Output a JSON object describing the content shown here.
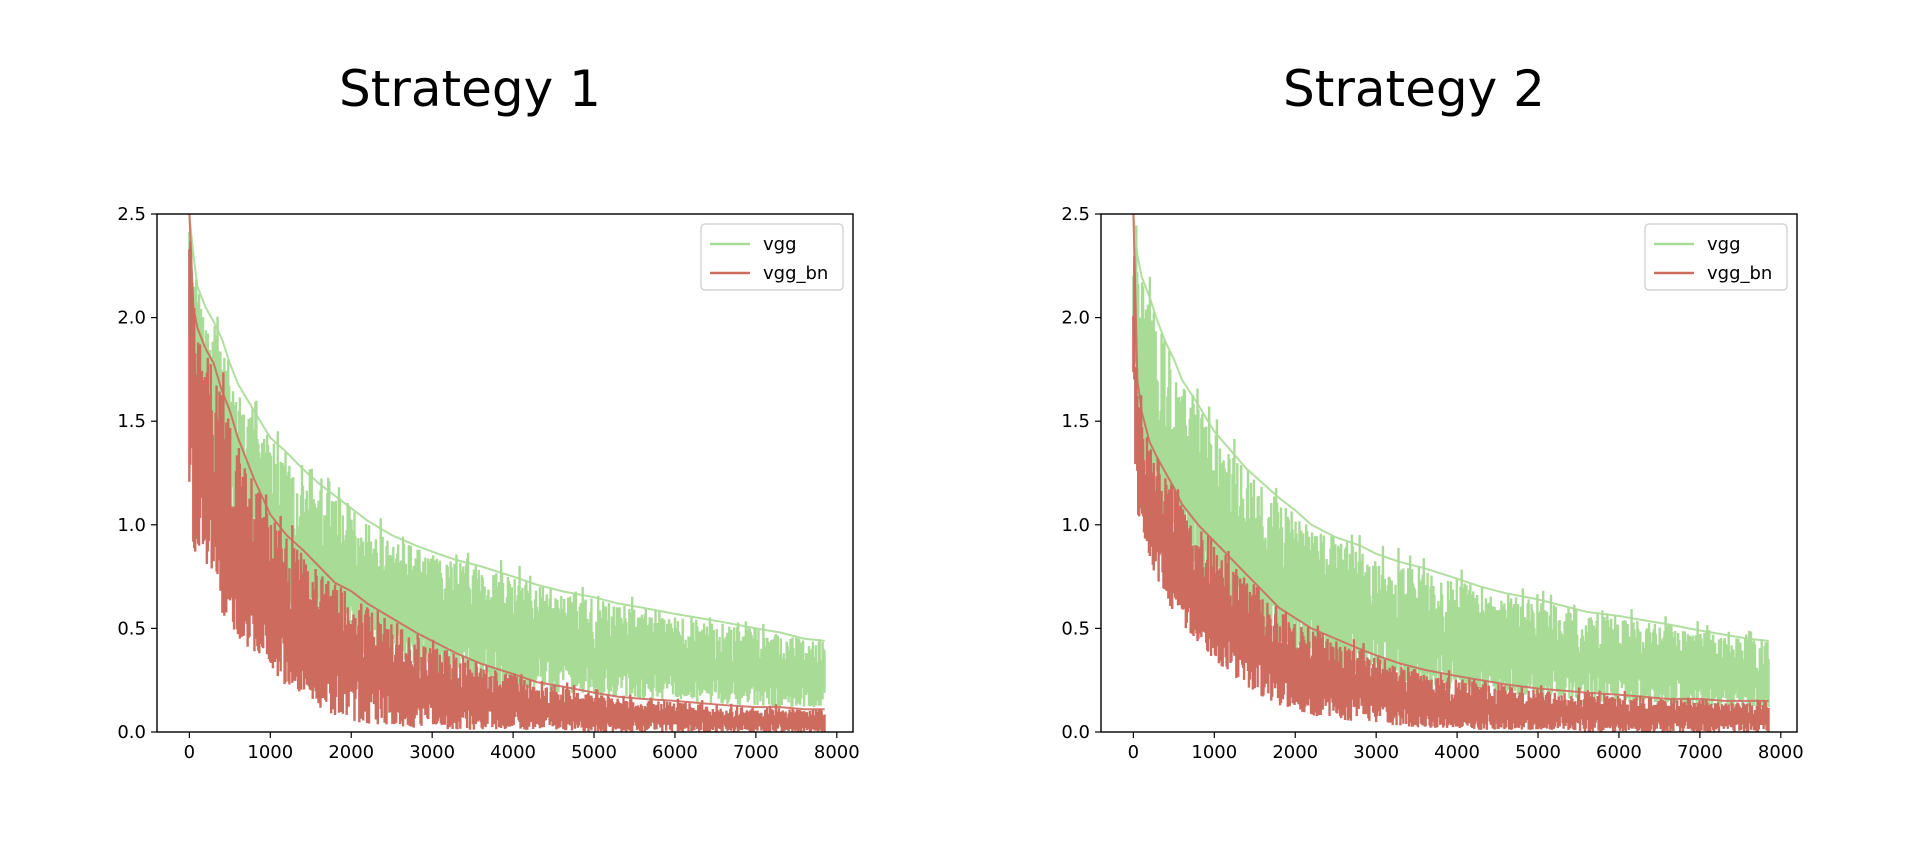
{
  "chart_data": [
    {
      "type": "line",
      "title": "Strategy 1",
      "xlabel": "",
      "ylabel": "",
      "xlim": [
        -400,
        8200
      ],
      "ylim": [
        0,
        2.5
      ],
      "xticks": [
        0,
        1000,
        2000,
        3000,
        4000,
        5000,
        6000,
        7000,
        8000
      ],
      "xtick_labels": [
        "0",
        "1000",
        "2000",
        "3000",
        "4000",
        "5000",
        "6000",
        "7000",
        "8000"
      ],
      "yticks": [
        0.0,
        0.5,
        1.0,
        1.5,
        2.0,
        2.5
      ],
      "ytick_labels": [
        "0.0",
        "0.5",
        "1.0",
        "1.5",
        "2.0",
        "2.5"
      ],
      "grid": false,
      "legend_position": "top-right",
      "series": [
        {
          "name": "vgg",
          "color": "#a8dc96",
          "x": [
            0,
            50,
            100,
            200,
            300,
            400,
            500,
            600,
            800,
            1000,
            1200,
            1400,
            1600,
            1800,
            2000,
            2200,
            2500,
            2800,
            3000,
            3300,
            3600,
            4000,
            4300,
            4600,
            5000,
            5300,
            5600,
            6000,
            6300,
            6600,
            7000,
            7300,
            7600,
            7850
          ],
          "upper": [
            2.5,
            2.3,
            2.15,
            2.05,
            1.98,
            1.9,
            1.78,
            1.68,
            1.55,
            1.42,
            1.35,
            1.27,
            1.2,
            1.14,
            1.08,
            1.02,
            0.95,
            0.9,
            0.87,
            0.83,
            0.8,
            0.75,
            0.71,
            0.68,
            0.65,
            0.62,
            0.6,
            0.57,
            0.55,
            0.53,
            0.5,
            0.48,
            0.45,
            0.44
          ],
          "lower": [
            1.85,
            1.6,
            1.45,
            1.3,
            1.15,
            1.05,
            0.95,
            0.9,
            0.8,
            0.7,
            0.62,
            0.55,
            0.5,
            0.44,
            0.4,
            0.36,
            0.32,
            0.3,
            0.28,
            0.25,
            0.23,
            0.21,
            0.2,
            0.19,
            0.18,
            0.17,
            0.16,
            0.15,
            0.14,
            0.13,
            0.13,
            0.12,
            0.12,
            0.12
          ]
        },
        {
          "name": "vgg_bn",
          "color": "#cd6b5f",
          "x": [
            0,
            50,
            100,
            200,
            300,
            400,
            500,
            600,
            800,
            1000,
            1200,
            1400,
            1600,
            1800,
            2000,
            2200,
            2500,
            2800,
            3000,
            3300,
            3600,
            4000,
            4300,
            4600,
            5000,
            5300,
            5600,
            6000,
            6300,
            6600,
            7000,
            7300,
            7600,
            7850
          ],
          "upper": [
            2.5,
            2.05,
            1.95,
            1.85,
            1.78,
            1.65,
            1.55,
            1.42,
            1.22,
            1.05,
            0.95,
            0.88,
            0.8,
            0.72,
            0.68,
            0.62,
            0.55,
            0.48,
            0.44,
            0.38,
            0.33,
            0.28,
            0.24,
            0.22,
            0.19,
            0.17,
            0.16,
            0.15,
            0.14,
            0.13,
            0.12,
            0.12,
            0.11,
            0.11
          ],
          "lower": [
            1.2,
            0.9,
            0.8,
            0.72,
            0.65,
            0.58,
            0.52,
            0.45,
            0.38,
            0.3,
            0.22,
            0.18,
            0.12,
            0.08,
            0.05,
            0.04,
            0.03,
            0.02,
            0.02,
            0.01,
            0.01,
            0.01,
            0.01,
            0.01,
            0.0,
            0.0,
            0.0,
            0.0,
            0.0,
            0.0,
            0.0,
            0.0,
            0.0,
            0.0
          ]
        }
      ]
    },
    {
      "type": "line",
      "title": "Strategy 2",
      "xlabel": "",
      "ylabel": "",
      "xlim": [
        -400,
        8200
      ],
      "ylim": [
        0,
        2.5
      ],
      "xticks": [
        0,
        1000,
        2000,
        3000,
        4000,
        5000,
        6000,
        7000,
        8000
      ],
      "xtick_labels": [
        "0",
        "1000",
        "2000",
        "3000",
        "4000",
        "5000",
        "6000",
        "7000",
        "8000"
      ],
      "yticks": [
        0.0,
        0.5,
        1.0,
        1.5,
        2.0,
        2.5
      ],
      "ytick_labels": [
        "0.0",
        "0.5",
        "1.0",
        "1.5",
        "2.0",
        "2.5"
      ],
      "grid": false,
      "legend_position": "top-right",
      "series": [
        {
          "name": "vgg",
          "color": "#a8dc96",
          "x": [
            0,
            50,
            100,
            200,
            300,
            400,
            500,
            600,
            800,
            1000,
            1200,
            1400,
            1600,
            1800,
            2000,
            2200,
            2500,
            2800,
            3000,
            3300,
            3600,
            4000,
            4300,
            4600,
            5000,
            5300,
            5600,
            6000,
            6300,
            6600,
            7000,
            7300,
            7600,
            7850
          ],
          "upper": [
            2.5,
            2.3,
            2.2,
            2.1,
            1.98,
            1.88,
            1.8,
            1.7,
            1.58,
            1.45,
            1.36,
            1.27,
            1.2,
            1.13,
            1.07,
            1.0,
            0.94,
            0.9,
            0.86,
            0.82,
            0.79,
            0.74,
            0.7,
            0.67,
            0.64,
            0.61,
            0.58,
            0.56,
            0.54,
            0.52,
            0.49,
            0.47,
            0.45,
            0.44
          ],
          "lower": [
            1.9,
            1.45,
            1.3,
            1.15,
            1.05,
            0.95,
            0.88,
            0.82,
            0.72,
            0.63,
            0.56,
            0.5,
            0.45,
            0.41,
            0.38,
            0.34,
            0.3,
            0.28,
            0.26,
            0.24,
            0.22,
            0.2,
            0.19,
            0.18,
            0.17,
            0.16,
            0.15,
            0.14,
            0.14,
            0.13,
            0.13,
            0.12,
            0.12,
            0.12
          ]
        },
        {
          "name": "vgg_bn",
          "color": "#cd6b5f",
          "x": [
            0,
            50,
            100,
            200,
            300,
            400,
            500,
            600,
            800,
            1000,
            1200,
            1400,
            1600,
            1800,
            2000,
            2200,
            2500,
            2800,
            3000,
            3300,
            3600,
            4000,
            4300,
            4600,
            5000,
            5300,
            5600,
            6000,
            6300,
            6600,
            7000,
            7300,
            7600,
            7850
          ],
          "upper": [
            2.5,
            1.7,
            1.55,
            1.4,
            1.32,
            1.25,
            1.18,
            1.1,
            1.0,
            0.92,
            0.84,
            0.76,
            0.68,
            0.6,
            0.55,
            0.5,
            0.45,
            0.4,
            0.37,
            0.33,
            0.3,
            0.27,
            0.25,
            0.23,
            0.21,
            0.2,
            0.19,
            0.18,
            0.17,
            0.16,
            0.16,
            0.15,
            0.15,
            0.15
          ],
          "lower": [
            1.5,
            1.05,
            0.92,
            0.82,
            0.72,
            0.64,
            0.56,
            0.5,
            0.42,
            0.35,
            0.28,
            0.22,
            0.17,
            0.13,
            0.1,
            0.08,
            0.06,
            0.05,
            0.04,
            0.03,
            0.02,
            0.02,
            0.01,
            0.01,
            0.01,
            0.01,
            0.0,
            0.0,
            0.0,
            0.0,
            0.0,
            0.0,
            0.0,
            0.0
          ]
        }
      ]
    }
  ]
}
